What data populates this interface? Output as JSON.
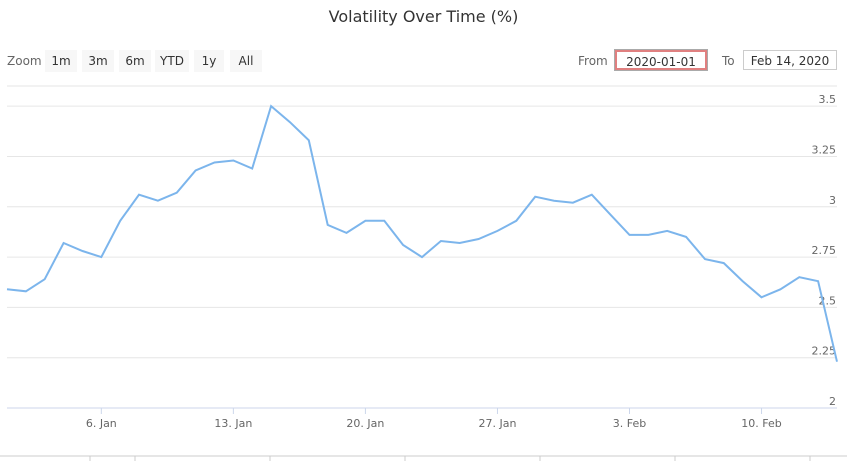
{
  "title": "Volatility Over Time (%)",
  "zoom": {
    "label": "Zoom",
    "buttons": [
      "1m",
      "3m",
      "6m",
      "YTD",
      "1y",
      "All"
    ]
  },
  "range": {
    "from_label": "From",
    "from_value": "2020-01-01",
    "to_label": "To",
    "to_value": "Feb 14, 2020"
  },
  "colors": {
    "line": "#7cb5ec",
    "grid": "#e6e6e6"
  },
  "chart_data": {
    "type": "line",
    "title": "Volatility Over Time (%)",
    "ylim": [
      2,
      3.6
    ],
    "y_ticks": [
      "2",
      "2.25",
      "2.5",
      "2.75",
      "3",
      "3.25",
      "3.5"
    ],
    "x_ticks": [
      "6. Jan",
      "13. Jan",
      "20. Jan",
      "27. Jan",
      "3. Feb",
      "10. Feb"
    ],
    "series": [
      {
        "x": [
          "2020-01-01",
          "2020-01-02",
          "2020-01-03",
          "2020-01-04",
          "2020-01-05",
          "2020-01-06",
          "2020-01-07",
          "2020-01-08",
          "2020-01-09",
          "2020-01-10",
          "2020-01-11",
          "2020-01-12",
          "2020-01-13",
          "2020-01-14",
          "2020-01-15",
          "2020-01-16",
          "2020-01-17",
          "2020-01-18",
          "2020-01-19",
          "2020-01-20",
          "2020-01-21",
          "2020-01-22",
          "2020-01-23",
          "2020-01-24",
          "2020-01-25",
          "2020-01-26",
          "2020-01-27",
          "2020-01-28",
          "2020-01-29",
          "2020-01-30",
          "2020-01-31",
          "2020-02-01",
          "2020-02-02",
          "2020-02-03",
          "2020-02-04",
          "2020-02-05",
          "2020-02-06",
          "2020-02-07",
          "2020-02-08",
          "2020-02-09",
          "2020-02-10",
          "2020-02-11",
          "2020-02-12",
          "2020-02-13",
          "2020-02-14"
        ],
        "values": [
          2.59,
          2.58,
          2.64,
          2.82,
          2.78,
          2.75,
          2.93,
          3.06,
          3.03,
          3.07,
          3.18,
          3.22,
          3.23,
          3.19,
          3.5,
          3.42,
          3.33,
          2.91,
          2.87,
          2.93,
          2.93,
          2.81,
          2.75,
          2.83,
          2.82,
          2.84,
          2.88,
          2.93,
          3.05,
          3.03,
          3.02,
          3.06,
          2.96,
          2.86,
          2.86,
          2.88,
          2.85,
          2.74,
          2.72,
          2.63,
          2.55,
          2.59,
          2.65,
          2.63,
          2.23
        ]
      }
    ]
  }
}
